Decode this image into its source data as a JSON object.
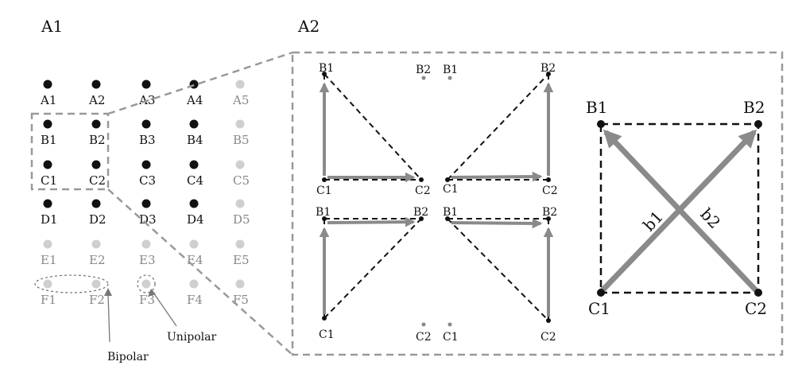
{
  "panels": {
    "a1": {
      "title": "A1"
    },
    "a2": {
      "title": "A2"
    }
  },
  "colors": {
    "active": "#111111",
    "inactive": "#cfcfcf",
    "arrow": "#8a8a8a",
    "inset_border": "#999999",
    "dashed_edge": "#111111"
  },
  "electrode_grid": {
    "rows": [
      "A",
      "B",
      "C",
      "D",
      "E",
      "F"
    ],
    "columns": [
      "1",
      "2",
      "3",
      "4",
      "5"
    ],
    "active_electrodes": [
      "A1",
      "A2",
      "A3",
      "A4",
      "B1",
      "B2",
      "B3",
      "B4",
      "C1",
      "C2",
      "C3",
      "C4",
      "D1",
      "D2",
      "D3",
      "D4"
    ]
  },
  "annotations": {
    "bipolar": "Bipolar",
    "unipolar": "Unipolar"
  },
  "a2": {
    "labels": {
      "b1": "B1",
      "b2": "B2",
      "c1": "C1",
      "c2": "C2"
    },
    "vector_b1": "b1",
    "vector_b2": "b2"
  }
}
